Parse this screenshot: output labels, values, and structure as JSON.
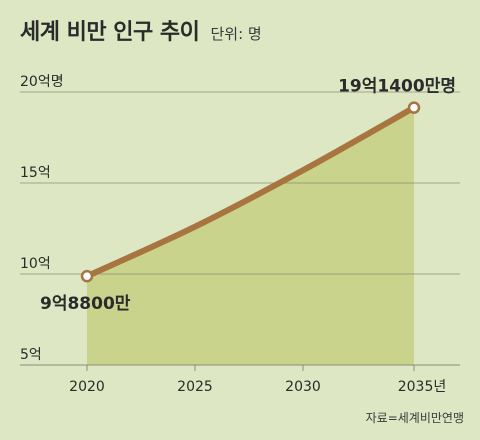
{
  "title": "세계 비만 인구 추이",
  "unit_label": "단위: 명",
  "source": "자료=세계비만연맹",
  "colors": {
    "background": "#dde7c3",
    "area": "#c9d38b",
    "line": "#a8743f",
    "grid": "#8c8c7a",
    "marker_fill": "#ffffff",
    "text": "#2b2b2b"
  },
  "chart_data": {
    "type": "area",
    "x": [
      "2020",
      "2025",
      "2030",
      "2035"
    ],
    "x_tick_labels": [
      "2020",
      "2025",
      "2030",
      "2035년"
    ],
    "series": [
      {
        "values": [
          9.88,
          12.6,
          15.7,
          19.14
        ]
      }
    ],
    "y_ticks": [
      {
        "value": 20,
        "label": "20억명"
      },
      {
        "value": 15,
        "label": "15억"
      },
      {
        "value": 10,
        "label": "10억"
      },
      {
        "value": 5,
        "label": "5억"
      }
    ],
    "ylim": [
      5,
      20
    ],
    "grid": true,
    "annotations": [
      {
        "point_index": 0,
        "text": "9억8800만"
      },
      {
        "point_index": 3,
        "text": "19억1400만명"
      }
    ]
  }
}
